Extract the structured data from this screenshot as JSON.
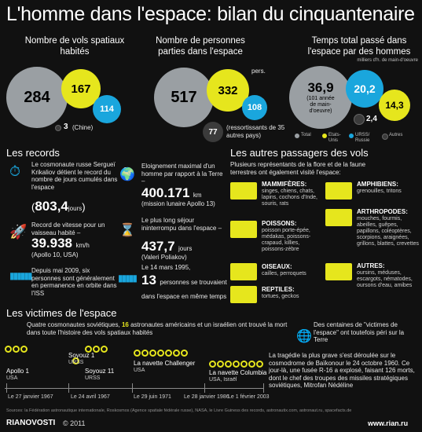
{
  "title": "L'homme dans l'espace: bilan du cinquantenaire",
  "col1": {
    "heading": "Nombre de vols spatiaux habités",
    "v1": "284",
    "v2": "167",
    "v3": "114",
    "v4": "3",
    "v4_note": "(Chine)"
  },
  "col2": {
    "heading": "Nombre de personnes parties dans l'espace",
    "v1": "517",
    "v2": "332",
    "v2_unit": "pers.",
    "v3": "108",
    "v4": "77",
    "v4_note": "(ressortissants de 35 autres pays)"
  },
  "col3": {
    "heading": "Temps total passé dans l'espace par des hommes",
    "unit_note": "milliers d'h. de main-d'oeuvre",
    "v1": "36,9",
    "v1_note": "(101 année de main-d'oeuvre)",
    "v2": "20,2",
    "v3": "14,3",
    "v4": "2,4"
  },
  "legend": {
    "total": "Total",
    "usa": "Etats-Unis",
    "urss": "URSS/ Russie",
    "autres": "Autres"
  },
  "records": {
    "heading": "Les records",
    "r1_text": "Le cosmonaute russe Sergueï Krikaliov détient le record du nombre de jours cumulés dans l'espace",
    "r1_value": "803,4",
    "r1_unit": "jours",
    "r2_text": "Record de vitesse pour un vaisseau habité –",
    "r2_value": "39.938",
    "r2_unit": "km/h",
    "r2_note": "(Apollo 10, USA)",
    "r3_text": "Depuis mai 2009, six personnes sont généralement en permanence en orbite dans l'ISS",
    "r4_text": "Eloignement maximal d'un homme par rapport à la Terre –",
    "r4_value": "400.171",
    "r4_unit": "km",
    "r4_note": "(mission lunaire Apollo 13)",
    "r5_text": "Le plus long séjour ininterrompu dans l'espace –",
    "r5_value": "437,7",
    "r5_unit": "jours",
    "r5_note": "(Valeri Poliakov)",
    "r6_text": "Le 14 mars 1995,",
    "r6_value": "13",
    "r6_text2": "personnes se trouvaient dans l'espace en même temps"
  },
  "passengers": {
    "heading": "Les autres passagers des vols",
    "intro": "Plusieurs représentants de la flore et de la faune terrestres ont également visité l'espace:",
    "items": [
      {
        "title": "MAMMIFÈRES:",
        "text": "singes, chiens, chats, lapins, cochons d'Inde, souris, rats"
      },
      {
        "title": "POISSONS:",
        "text": "poisson porte-épée, médakas, poissons-crapaud, killies, poissons-zèbre"
      },
      {
        "title": "OISEAUX:",
        "text": "cailles, perroquets"
      },
      {
        "title": "REPTILES:",
        "text": "tortues, geckos"
      },
      {
        "title": "AMPHIBIENS:",
        "text": "grenouilles, tritons"
      },
      {
        "title": "ARTHROPODES:",
        "text": "mouches, fourmis, abeilles, guêpes, papillons, coléoptères, scorpions, araignées, grillons, blattes, crevettes"
      },
      {
        "title": "AUTRES:",
        "text": "oursins, méduses, escargots, nématodes, oursons d'eau, amibes"
      }
    ]
  },
  "victims": {
    "heading": "Les victimes de l'espace",
    "intro_a": "Quatre cosmonautes soviétiques,",
    "intro_num": "16",
    "intro_b": "astronautes américains et un israélien ont trouvé la mort dans toute l'histoire des vols spatiaux habités",
    "side_note": "Des centaines de \"victimes de l'espace\" ont toutefois péri sur la Terre",
    "side_text": "La tragédie la plus grave s'est déroulée sur le cosmodrome de Baïkonour le 24 octobre 1960. Ce jour-là, une fusée R-16 a explosé, faisant 126 morts, dont le chef des troupes des missiles stratégiques soviétiques, Mitrofan Nédéline",
    "events": [
      {
        "name": "Apollo 1",
        "country": "USA",
        "date": "Le 27 janvier 1967"
      },
      {
        "name": "Soyouz 1",
        "country": "URSS",
        "date": "Le 24 avril 1967"
      },
      {
        "name": "Soyouz 11",
        "country": "URSS",
        "date": "Le 29 juin 1971"
      },
      {
        "name": "La navette Challenger",
        "country": "USA",
        "date": "Le 28 janvier 1986"
      },
      {
        "name": "La navette Columbia",
        "country": "USA, Israël",
        "date": "Le 1 février 2003"
      }
    ]
  },
  "sources": "Sources: la Fédération astronautique internationale, Roskosmos (Agence spatiale fédérale russe), NASA, le Livre Guiness des records, astronautix.com, astronaut.ru, spacefacts.de",
  "footer": {
    "brand": "RIANOVOSTI",
    "year": "© 2011",
    "site": "www.rian.ru"
  },
  "colors": {
    "grey": "#9a9fa3",
    "yellow": "#e6e61d",
    "blue": "#1aa6dd",
    "dark": "#3b3b3b"
  }
}
